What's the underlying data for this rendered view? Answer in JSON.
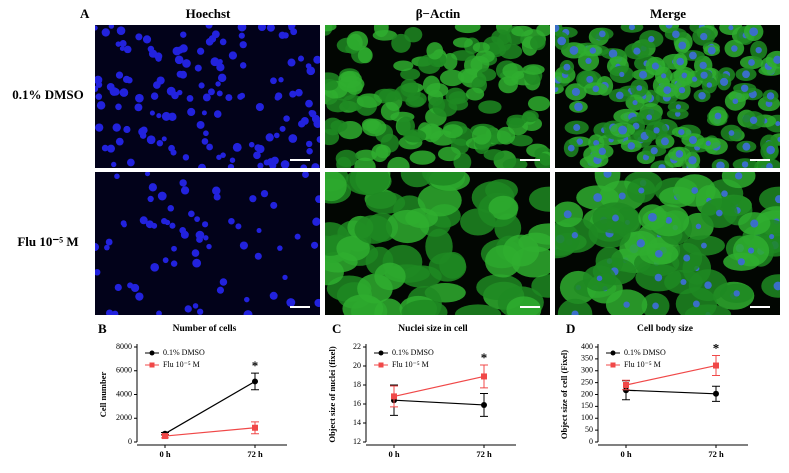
{
  "figure": {
    "panel_label": "A",
    "columns": [
      "Hoechst",
      "β−Actin",
      "Merge"
    ],
    "rows": [
      "0.1% DMSO",
      "Flu 10⁻⁵ M"
    ]
  },
  "chart_data": [
    {
      "type": "line",
      "panel": "B",
      "title": "Number of cells",
      "ylabel": "Cell number",
      "categories": [
        "0 h",
        "72 h"
      ],
      "series": [
        {
          "name": "0.1% DMSO",
          "color": "#000000",
          "values": [
            700,
            5100
          ],
          "errors": [
            100,
            700
          ]
        },
        {
          "name": "Flu 10⁻⁵ M",
          "color": "#f04848",
          "values": [
            500,
            1200
          ],
          "errors": [
            150,
            500
          ]
        }
      ],
      "ylim": [
        0,
        8000
      ],
      "yticks": [
        0,
        2000,
        4000,
        6000,
        8000
      ],
      "annotation": "*"
    },
    {
      "type": "line",
      "panel": "C",
      "title": "Nuclei size in cell",
      "ylabel": "Object size of nuclei (fixel)",
      "categories": [
        "0 h",
        "72 h"
      ],
      "series": [
        {
          "name": "0.1% DMSO",
          "color": "#000000",
          "values": [
            16.4,
            15.9
          ],
          "errors": [
            1.6,
            1.2
          ]
        },
        {
          "name": "Flu 10⁻⁵ M",
          "color": "#f04848",
          "values": [
            16.8,
            18.9
          ],
          "errors": [
            1.1,
            1.2
          ]
        }
      ],
      "ylim": [
        12,
        22
      ],
      "yticks": [
        12,
        14,
        16,
        18,
        20,
        22
      ],
      "annotation": "*"
    },
    {
      "type": "line",
      "panel": "D",
      "title": "Cell body size",
      "ylabel": "Object size of cell (Fixel)",
      "categories": [
        "0 h",
        "72 h"
      ],
      "series": [
        {
          "name": "0.1% DMSO",
          "color": "#000000",
          "values": [
            218,
            203
          ],
          "errors": [
            40,
            32
          ]
        },
        {
          "name": "Flu 10⁻⁵ M",
          "color": "#f04848",
          "values": [
            240,
            322
          ],
          "errors": [
            20,
            42
          ]
        }
      ],
      "ylim": [
        0,
        400
      ],
      "yticks": [
        0,
        50,
        100,
        150,
        200,
        250,
        300,
        350,
        400
      ],
      "annotation": "*"
    }
  ]
}
